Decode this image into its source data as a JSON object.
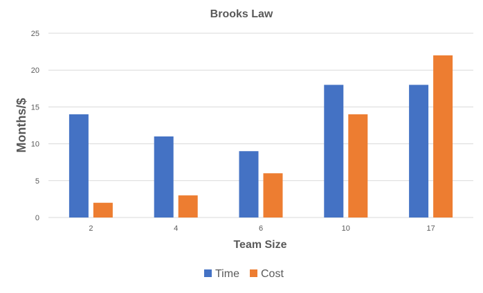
{
  "chart_data": {
    "type": "bar",
    "title": "Brooks Law",
    "xlabel": "Team Size",
    "ylabel": "Months/$",
    "categories": [
      "2",
      "4",
      "6",
      "10",
      "17"
    ],
    "series": [
      {
        "name": "Time",
        "color": "#4472C4",
        "values": [
          14,
          11,
          9,
          18,
          18
        ]
      },
      {
        "name": "Cost",
        "color": "#ED7D31",
        "values": [
          2,
          3,
          6,
          14,
          22
        ]
      }
    ],
    "ylim": [
      0,
      25
    ],
    "yticks": [
      0,
      5,
      10,
      15,
      20,
      25
    ],
    "grid": true,
    "legend_position": "bottom",
    "gridline_color": "#D9D9D9",
    "text_color": "#595959"
  }
}
